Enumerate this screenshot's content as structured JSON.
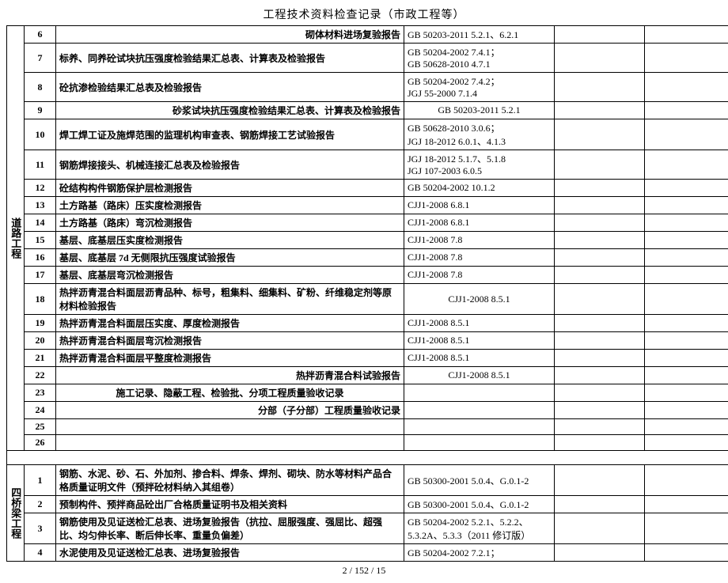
{
  "title": "工程技术资料检查记录（市政工程等）",
  "pageNumber": "2 / 152 / 15",
  "sections": {
    "road": "道路工程",
    "bridge": "四桥梁工程"
  },
  "rows": [
    {
      "n": "6",
      "desc": "砌体材料进场复验报告",
      "align": "right",
      "std": "GB 50203-2011 5.2.1、6.2.1"
    },
    {
      "n": "7",
      "desc": "标养、同养砼试块抗压强度检验结果汇总表、计算表及检验报告",
      "align": "left",
      "std": "GB 50204-2002 7.4.1；\nGB 50628-2010 4.7.1"
    },
    {
      "n": "8",
      "desc": "砼抗渗检验结果汇总表及检验报告",
      "align": "left",
      "std": "GB 50204-2002 7.4.2；\nJGJ 55-2000 7.1.4"
    },
    {
      "n": "9",
      "desc": "砂浆试块抗压强度检验结果汇总表、计算表及检验报告",
      "align": "right",
      "std": "GB 50203-2011 5.2.1",
      "stdAlign": "center"
    },
    {
      "n": "10",
      "desc": "焊工焊工证及施焊范围的监理机构审查表、钢筋焊接工艺试验报告",
      "align": "left",
      "std": "GB 50628-2010 3.0.6；\nJGJ 18-2012 6.0.1、4.1.3"
    },
    {
      "n": "11",
      "desc": "钢筋焊接接头、机械连接汇总表及检验报告",
      "align": "left",
      "std": "JGJ 18-2012 5.1.7、5.1.8\nJGJ 107-2003 6.0.5"
    },
    {
      "n": "12",
      "desc": "砼结构构件钢筋保护层检测报告",
      "align": "left",
      "std": "GB 50204-2002 10.1.2"
    },
    {
      "n": "13",
      "desc": "土方路基（路床）压实度检测报告",
      "align": "left",
      "std": "CJJ1-2008 6.8.1"
    },
    {
      "n": "14",
      "desc": "土方路基（路床）弯沉检测报告",
      "align": "left",
      "std": "CJJ1-2008 6.8.1"
    },
    {
      "n": "15",
      "desc": "基层、底基层压实度检测报告",
      "align": "left",
      "std": "CJJ1-2008 7.8"
    },
    {
      "n": "16",
      "desc": "基层、底基层 7d 无侧限抗压强度试验报告",
      "align": "left",
      "std": "CJJ1-2008 7.8"
    },
    {
      "n": "17",
      "desc": "基层、底基层弯沉检测报告",
      "align": "left",
      "std": "CJJ1-2008 7.8"
    },
    {
      "n": "18",
      "desc": "热拌沥青混合料面层沥青品种、标号，粗集料、细集料、矿粉、纤维稳定剂等原材料检验报告",
      "align": "left",
      "std": "CJJ1-2008 8.5.1",
      "stdAlign": "center"
    },
    {
      "n": "19",
      "desc": "热拌沥青混合料面层压实度、厚度检测报告",
      "align": "left",
      "std": "CJJ1-2008 8.5.1"
    },
    {
      "n": "20",
      "desc": "热拌沥青混合料面层弯沉检测报告",
      "align": "left",
      "std": "CJJ1-2008 8.5.1"
    },
    {
      "n": "21",
      "desc": "热拌沥青混合料面层平整度检测报告",
      "align": "left",
      "std": "CJJ1-2008 8.5.1"
    },
    {
      "n": "22",
      "desc": "热拌沥青混合料试验报告",
      "align": "right",
      "std": "CJJ1-2008 8.5.1",
      "stdAlign": "center"
    },
    {
      "n": "23",
      "desc": "施工记录、隐蔽工程、检验批、分项工程质量验收记录",
      "align": "center",
      "std": ""
    },
    {
      "n": "24",
      "desc": "分部（子分部）工程质量验收记录",
      "align": "right",
      "std": ""
    },
    {
      "n": "25",
      "desc": "",
      "align": "left",
      "std": ""
    },
    {
      "n": "26",
      "desc": "",
      "align": "left",
      "std": ""
    }
  ],
  "rows2": [
    {
      "n": "1",
      "desc": "钢筋、水泥、砂、石、外加剂、掺合料、焊条、焊剂、砌块、防水等材料产品合格质量证明文件（预拌砼材料纳入其组卷）",
      "align": "left",
      "std": "GB 50300-2001 5.0.4、G.0.1-2"
    },
    {
      "n": "2",
      "desc": "预制构件、预拌商品砼出厂合格质量证明书及相关资料",
      "align": "left",
      "std": "GB 50300-2001 5.0.4、G.0.1-2"
    },
    {
      "n": "3",
      "desc": "钢筋使用及见证送检汇总表、进场复验报告（抗拉、屈服强度、强屈比、超强比、均匀伸长率、断后伸长率、重量负偏差）",
      "align": "left",
      "std": "GB 50204-2002 5.2.1、5.2.2、5.3.2A、5.3.3（2011 修订版）"
    },
    {
      "n": "4",
      "desc": "水泥使用及见证送检汇总表、进场复验报告",
      "align": "left",
      "std": "GB 50204-2002 7.2.1；"
    }
  ]
}
